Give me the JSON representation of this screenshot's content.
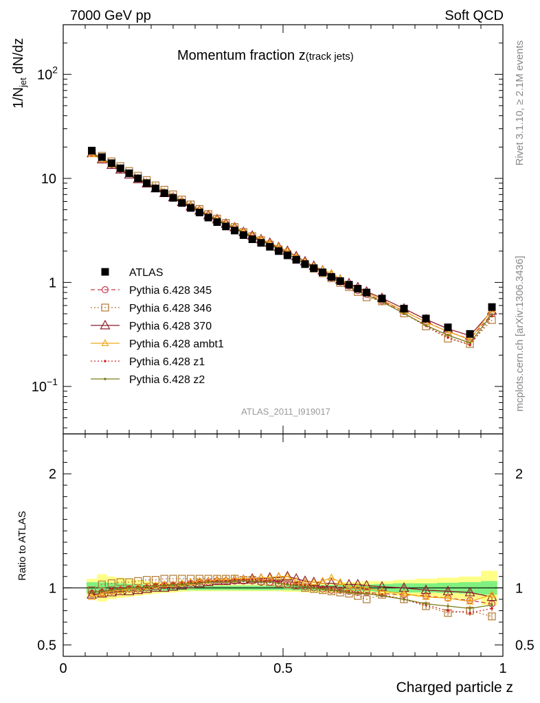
{
  "header": {
    "left": "7000 GeV pp",
    "right": "Soft QCD"
  },
  "side_labels": {
    "rivet": "Rivet 3.1.10, ≥ 2.1M events",
    "mcplots": "mcplots.cern.ch [arXiv:1306.3436]"
  },
  "chart_data": {
    "type": "line",
    "title_main": "Momentum fraction z",
    "title_sub": "(track jets)",
    "analysis_id": "ATLAS_2011_I919017",
    "xlabel": "Charged particle z",
    "ylabel": "1/N_jet dN/dz",
    "ratio_ylabel": "Ratio to ATLAS",
    "xlim": [
      0,
      1
    ],
    "ylim": [
      0.035,
      300
    ],
    "yscale": "log",
    "ratio_ylim": [
      0.4,
      2.35
    ],
    "x_ticks": [
      "0",
      "0.5",
      "1"
    ],
    "y_ticks": [
      "10^-1",
      "1",
      "10",
      "10^2"
    ],
    "ratio_ticks": [
      "0.5",
      "1",
      "2"
    ],
    "legend_position": "left, middle of upper panel",
    "x": [
      0.065,
      0.088,
      0.11,
      0.13,
      0.15,
      0.17,
      0.19,
      0.21,
      0.23,
      0.25,
      0.27,
      0.29,
      0.31,
      0.33,
      0.35,
      0.37,
      0.39,
      0.41,
      0.43,
      0.45,
      0.47,
      0.49,
      0.51,
      0.53,
      0.55,
      0.57,
      0.59,
      0.61,
      0.63,
      0.65,
      0.67,
      0.69,
      0.725,
      0.775,
      0.825,
      0.875,
      0.925,
      0.975
    ],
    "data": {
      "name": "ATLAS",
      "values": [
        18.5,
        16.0,
        14.0,
        12.5,
        11.2,
        10.0,
        9.0,
        8.0,
        7.2,
        6.5,
        5.8,
        5.2,
        4.7,
        4.2,
        3.8,
        3.45,
        3.15,
        2.85,
        2.6,
        2.4,
        2.2,
        2.0,
        1.82,
        1.65,
        1.5,
        1.37,
        1.25,
        1.13,
        1.03,
        0.95,
        0.87,
        0.8,
        0.7,
        0.56,
        0.45,
        0.37,
        0.32,
        0.58
      ]
    },
    "series": [
      {
        "name": "Pythia 6.428 345",
        "color": "#c8384a",
        "marker": "open-circle",
        "dash": "dashed",
        "ratio": [
          0.95,
          0.96,
          0.97,
          0.98,
          0.99,
          0.99,
          1.0,
          1.01,
          1.02,
          1.02,
          1.03,
          1.04,
          1.05,
          1.05,
          1.06,
          1.06,
          1.06,
          1.06,
          1.06,
          1.05,
          1.05,
          1.04,
          1.03,
          1.02,
          1.01,
          1.0,
          0.99,
          0.98,
          0.98,
          0.97,
          0.96,
          0.96,
          0.95,
          0.94,
          0.93,
          0.91,
          0.89,
          0.86
        ]
      },
      {
        "name": "Pythia 6.428 346",
        "color": "#b07830",
        "marker": "open-square",
        "dash": "dotted",
        "ratio": [
          0.98,
          1.03,
          1.04,
          1.05,
          1.05,
          1.06,
          1.07,
          1.07,
          1.08,
          1.08,
          1.08,
          1.08,
          1.08,
          1.08,
          1.08,
          1.08,
          1.08,
          1.07,
          1.07,
          1.06,
          1.05,
          1.04,
          1.03,
          1.02,
          1.0,
          0.99,
          0.98,
          0.97,
          0.96,
          0.95,
          0.93,
          0.9,
          0.94,
          0.9,
          0.84,
          0.78,
          0.8,
          0.75
        ]
      },
      {
        "name": "Pythia 6.428 370",
        "color": "#8b1a2a",
        "marker": "open-triangle",
        "dash": "solid",
        "ratio": [
          0.94,
          0.95,
          0.96,
          0.97,
          0.97,
          0.98,
          0.99,
          1.0,
          1.0,
          1.01,
          1.02,
          1.03,
          1.04,
          1.05,
          1.06,
          1.06,
          1.07,
          1.07,
          1.08,
          1.08,
          1.09,
          1.09,
          1.1,
          1.08,
          1.06,
          1.05,
          1.04,
          1.04,
          1.03,
          1.03,
          1.03,
          1.02,
          1.01,
          1.0,
          0.98,
          0.97,
          0.96,
          0.92
        ]
      },
      {
        "name": "Pythia 6.428 ambt1",
        "color": "#f0a818",
        "marker": "open-triangle-small",
        "dash": "solid",
        "ratio": [
          0.92,
          0.95,
          0.97,
          0.98,
          0.99,
          1.0,
          1.01,
          1.02,
          1.03,
          1.03,
          1.04,
          1.05,
          1.06,
          1.06,
          1.07,
          1.07,
          1.08,
          1.08,
          1.08,
          1.09,
          1.09,
          1.1,
          1.1,
          1.06,
          1.05,
          1.05,
          1.06,
          1.09,
          1.05,
          1.0,
          1.01,
          1.0,
          0.97,
          0.95,
          0.92,
          0.91,
          0.88,
          0.94
        ]
      },
      {
        "name": "Pythia 6.428 z1",
        "color": "#d02020",
        "marker": "dot",
        "dash": "dotted",
        "ratio": [
          0.97,
          0.98,
          0.99,
          1.0,
          1.01,
          1.01,
          1.02,
          1.03,
          1.03,
          1.04,
          1.04,
          1.05,
          1.05,
          1.06,
          1.06,
          1.06,
          1.07,
          1.07,
          1.07,
          1.06,
          1.06,
          1.05,
          1.04,
          1.03,
          1.02,
          1.01,
          1.0,
          0.99,
          0.98,
          0.97,
          0.96,
          0.95,
          0.94,
          0.9,
          0.85,
          0.8,
          0.78,
          0.82
        ]
      },
      {
        "name": "Pythia 6.428 z2",
        "color": "#7a7a18",
        "marker": "dot",
        "dash": "solid",
        "ratio": [
          0.96,
          0.97,
          0.98,
          0.99,
          1.0,
          1.0,
          1.01,
          1.02,
          1.02,
          1.03,
          1.03,
          1.04,
          1.04,
          1.05,
          1.05,
          1.05,
          1.06,
          1.06,
          1.06,
          1.05,
          1.05,
          1.04,
          1.03,
          1.02,
          1.01,
          1.0,
          0.99,
          0.98,
          0.97,
          0.96,
          0.95,
          0.95,
          0.93,
          0.9,
          0.86,
          0.84,
          0.82,
          0.85
        ]
      }
    ],
    "band_inner": {
      "color": "#80f080",
      "hw": [
        0.05,
        0.05,
        0.045,
        0.04,
        0.035,
        0.03,
        0.03,
        0.025,
        0.025,
        0.025,
        0.02,
        0.02,
        0.02,
        0.02,
        0.02,
        0.02,
        0.02,
        0.02,
        0.02,
        0.02,
        0.02,
        0.02,
        0.02,
        0.022,
        0.022,
        0.025,
        0.025,
        0.025,
        0.025,
        0.028,
        0.03,
        0.03,
        0.035,
        0.04,
        0.04,
        0.045,
        0.05,
        0.06
      ]
    },
    "band_outer": {
      "color": "#ffff88",
      "hw": [
        0.08,
        0.12,
        0.1,
        0.09,
        0.08,
        0.07,
        0.06,
        0.05,
        0.045,
        0.04,
        0.035,
        0.03,
        0.03,
        0.03,
        0.03,
        0.03,
        0.03,
        0.03,
        0.03,
        0.03,
        0.03,
        0.03,
        0.035,
        0.035,
        0.04,
        0.04,
        0.045,
        0.045,
        0.05,
        0.05,
        0.055,
        0.06,
        0.06,
        0.07,
        0.08,
        0.09,
        0.1,
        0.15
      ]
    }
  }
}
